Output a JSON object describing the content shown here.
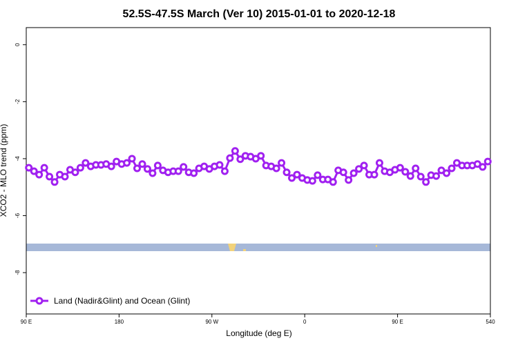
{
  "chart_data": {
    "type": "line",
    "title": "52.5S-47.5S March (Ver 10)   2015-01-01 to 2020-12-18",
    "x_label": "Longitude (deg E)",
    "y_label": "XCO2 - MLO trend (ppm)",
    "x": [
      92.5,
      97.5,
      102.5,
      107.5,
      112.5,
      117.5,
      122.5,
      127.5,
      132.5,
      137.5,
      142.5,
      147.5,
      152.5,
      157.5,
      162.5,
      167.5,
      172.5,
      177.5,
      182.5,
      187.5,
      192.5,
      197.5,
      202.5,
      207.5,
      212.5,
      217.5,
      222.5,
      227.5,
      232.5,
      237.5,
      242.5,
      247.5,
      252.5,
      257.5,
      262.5,
      267.5,
      272.5,
      277.5,
      282.5,
      287.5,
      292.5,
      297.5,
      302.5,
      307.5,
      312.5,
      317.5,
      322.5,
      327.5,
      332.5,
      337.5,
      342.5,
      347.5,
      352.5,
      357.5,
      362.5,
      367.5,
      372.5,
      377.5,
      382.5,
      387.5,
      392.5,
      397.5,
      402.5,
      407.5,
      412.5,
      417.5,
      422.5,
      427.5,
      432.5,
      437.5,
      442.5,
      447.5,
      452.5,
      457.5,
      462.5,
      467.5,
      472.5,
      477.5,
      482.5,
      487.5,
      492.5,
      497.5,
      502.5,
      507.5,
      512.5,
      517.5,
      522.5,
      527.5,
      532.5,
      537.5
    ],
    "series": [
      {
        "name": "Land (Nadir&Glint) and Ocean (Glint)",
        "color": "#a020f0",
        "values": [
          -4.32,
          -4.44,
          -4.56,
          -4.32,
          -4.63,
          -4.82,
          -4.56,
          -4.63,
          -4.39,
          -4.48,
          -4.32,
          -4.15,
          -4.27,
          -4.22,
          -4.22,
          -4.19,
          -4.27,
          -4.1,
          -4.19,
          -4.15,
          -4.0,
          -4.34,
          -4.19,
          -4.36,
          -4.51,
          -4.24,
          -4.41,
          -4.48,
          -4.44,
          -4.44,
          -4.29,
          -4.48,
          -4.51,
          -4.34,
          -4.27,
          -4.36,
          -4.27,
          -4.22,
          -4.44,
          -3.98,
          -3.73,
          -4.02,
          -3.9,
          -3.93,
          -4.0,
          -3.9,
          -4.24,
          -4.27,
          -4.34,
          -4.15,
          -4.48,
          -4.68,
          -4.56,
          -4.68,
          -4.75,
          -4.78,
          -4.58,
          -4.73,
          -4.73,
          -4.82,
          -4.41,
          -4.48,
          -4.75,
          -4.51,
          -4.36,
          -4.24,
          -4.56,
          -4.56,
          -4.15,
          -4.44,
          -4.48,
          -4.39,
          -4.32,
          -4.46,
          -4.61,
          -4.34,
          -4.63,
          -4.82,
          -4.58,
          -4.61,
          -4.41,
          -4.51,
          -4.34,
          -4.15,
          -4.24,
          -4.24,
          -4.24,
          -4.19,
          -4.29,
          -4.1
        ]
      }
    ],
    "xlim": [
      90,
      540
    ],
    "xticks": [
      {
        "value": 90,
        "label": "90 E"
      },
      180,
      {
        "value": 270,
        "label": "90 W"
      },
      {
        "value": 360,
        "label": "0"
      },
      {
        "value": 450,
        "label": "90 E"
      },
      540
    ],
    "ylim": [
      -9.45,
      0.6
    ],
    "yticks": [
      0,
      -2,
      -4,
      -6,
      -8
    ],
    "legend": "bottomleft"
  }
}
